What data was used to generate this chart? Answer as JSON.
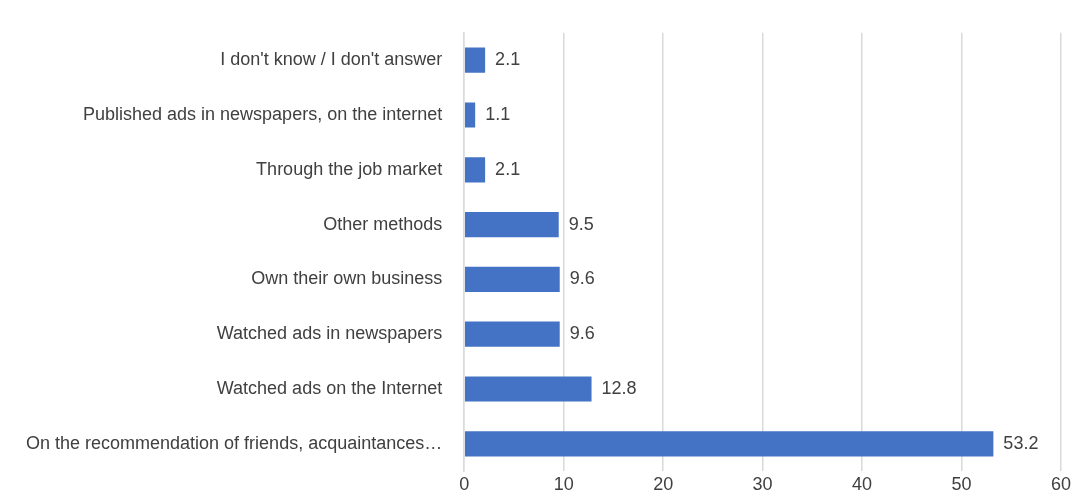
{
  "chart_data": {
    "type": "bar",
    "orientation": "horizontal",
    "categories": [
      "I don't know / I don't answer",
      "Published ads in newspapers, on the internet",
      "Through the job market",
      "Other methods",
      "Own their own business",
      "Watched ads in newspapers",
      "Watched ads on the Internet",
      "On the recommendation of friends, acquaintances…"
    ],
    "values": [
      2.1,
      1.1,
      2.1,
      9.5,
      9.6,
      9.6,
      12.8,
      53.2
    ],
    "color": "#4472c4",
    "xlim": [
      0,
      60
    ],
    "xticks": [
      0,
      10,
      20,
      30,
      40,
      50,
      60
    ],
    "grid": "x",
    "legend": false,
    "data_labels": true
  }
}
